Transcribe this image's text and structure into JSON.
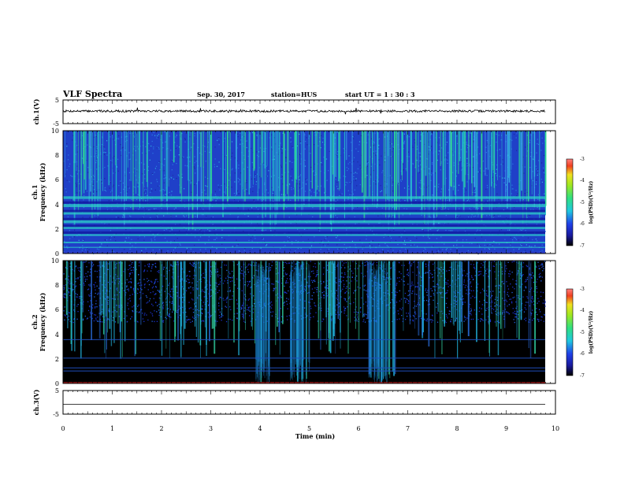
{
  "header": {
    "title": "VLF Spectra",
    "date": "Sep. 30, 2017",
    "station": "station=HUS",
    "start_time": "start UT =  1 : 30 : 3"
  },
  "chart_data": [
    {
      "type": "line",
      "panel": "ch1-waveform",
      "ylabel": "ch.1(V)",
      "ylim": [
        -5,
        5
      ],
      "yticks": [
        "5",
        "",
        "-5"
      ],
      "series": [
        {
          "description_level": 0.3
        }
      ]
    },
    {
      "type": "heatmap",
      "panel": "ch1-spectrogram",
      "ylabel_line1": "ch.1",
      "ylabel_line2": "Frequency (kHz)",
      "ylim": [
        0,
        10
      ],
      "yticks": [
        "0",
        "2",
        "4",
        "6",
        "8",
        "10"
      ],
      "xlim": [
        0,
        10
      ],
      "colorbar": {
        "label": "log(PSD)(V²/Hz)",
        "range": [
          -7,
          -3
        ],
        "ticks": [
          "-3",
          "-4",
          "-5",
          "-6",
          "-7"
        ]
      }
    },
    {
      "type": "heatmap",
      "panel": "ch2-spectrogram",
      "ylabel_line1": "ch.2",
      "ylabel_line2": "Frequency (kHz)",
      "ylim": [
        0,
        10
      ],
      "yticks": [
        "0",
        "2",
        "4",
        "6",
        "8",
        "10"
      ],
      "xlim": [
        0,
        10
      ],
      "colorbar": {
        "label": "log(PSD)(V²/Hz)",
        "range": [
          -7,
          -3
        ],
        "ticks": [
          "-3",
          "-4",
          "-5",
          "-6",
          "-7"
        ]
      }
    },
    {
      "type": "line",
      "panel": "ch3-waveform",
      "ylabel": "ch.3(V)",
      "ylim": [
        -5,
        5
      ],
      "yticks": [
        "5",
        "",
        "-5"
      ],
      "series": [
        {
          "level": -0.8
        }
      ]
    }
  ],
  "xaxis": {
    "label": "Time (min)",
    "range": [
      0,
      10
    ],
    "ticks": [
      "0",
      "1",
      "2",
      "3",
      "4",
      "5",
      "6",
      "7",
      "8",
      "9",
      "10"
    ]
  },
  "colors": {
    "spectrogram_background_ch1": "#1f40c8",
    "spectrogram_background_ch2": "#000000",
    "trace": "#000000"
  }
}
